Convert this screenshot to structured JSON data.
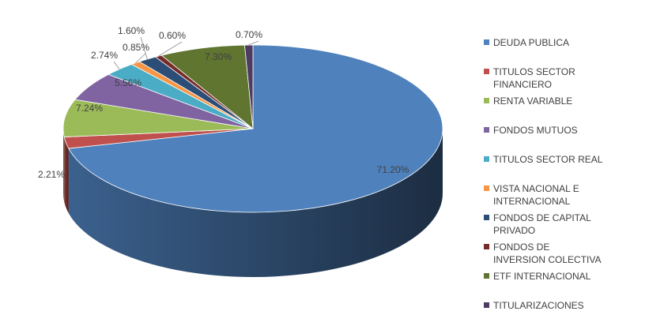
{
  "chart_data": {
    "type": "pie3d",
    "categories": [
      "DEUDA PUBLICA",
      "TITULOS SECTOR FINANCIERO",
      "RENTA VARIABLE",
      "FONDOS MUTUOS",
      "TITULOS SECTOR REAL",
      "VISTA NACIONAL E INTERNACIONAL",
      "FONDOS DE CAPITAL PRIVADO",
      "FONDOS DE INVERSION COLECTIVA",
      "ETF INTERNACIONAL",
      "TITULARIZACIONES"
    ],
    "values": [
      71.2,
      2.21,
      7.24,
      5.56,
      2.74,
      0.85,
      1.6,
      0.6,
      7.3,
      0.7
    ],
    "value_labels": [
      "71.20%",
      "2.21%",
      "7.24%",
      "5.56%",
      "2.74%",
      "0.85%",
      "1.60%",
      "0.60%",
      "7.30%",
      "0.70%"
    ],
    "colors": [
      "#4f81bd",
      "#c0504d",
      "#9bbb59",
      "#8064a2",
      "#4bacc6",
      "#f79646",
      "#2c4d75",
      "#772c2a",
      "#5f7530",
      "#4d3b62"
    ],
    "legend": "right"
  }
}
